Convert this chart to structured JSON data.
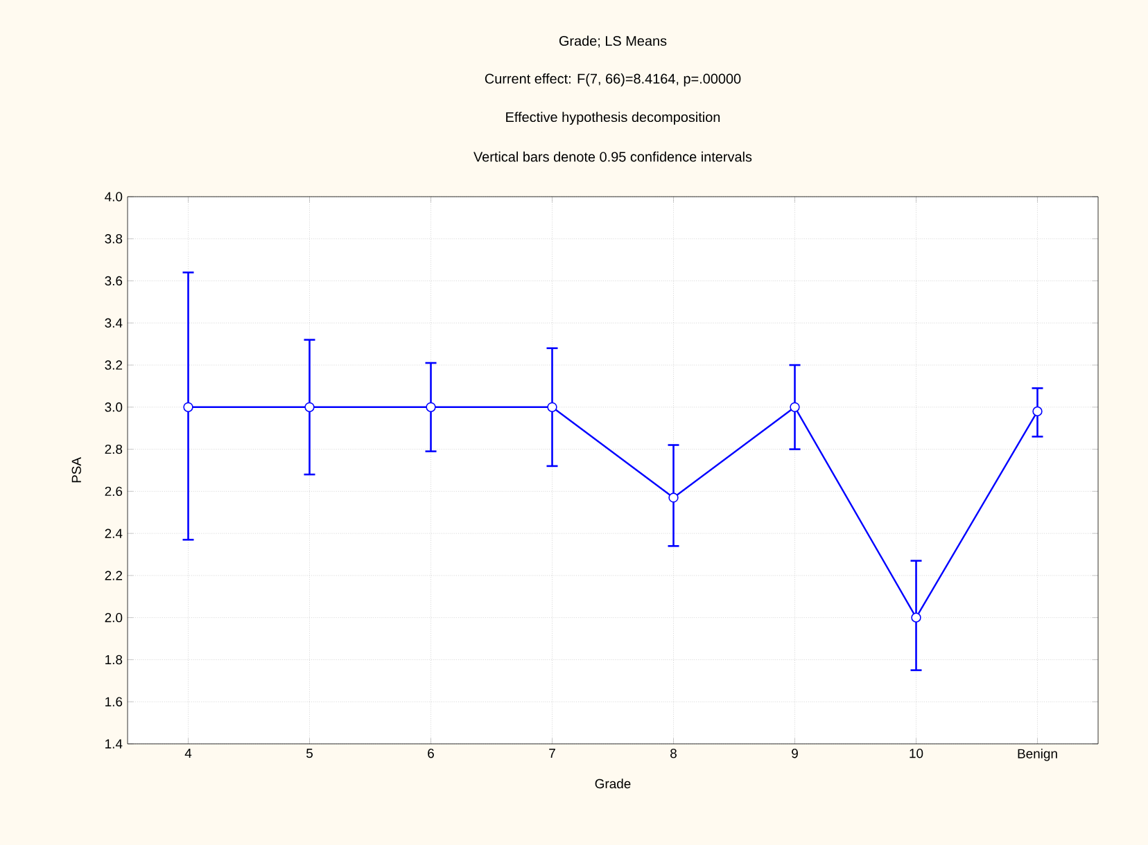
{
  "chart_data": {
    "type": "line",
    "title": "Grade; LS Means",
    "subtitle": "Current effect: F(7, 66)=8.4164, p=.00000",
    "annotations": [
      "Effective hypothesis decomposition",
      "Vertical bars denote 0.95 confidence intervals"
    ],
    "xlabel": "Grade",
    "ylabel": "PSA",
    "categories": [
      "4",
      "5",
      "6",
      "7",
      "8",
      "9",
      "10",
      "Benign"
    ],
    "series": [
      {
        "color": "#0000ff",
        "values": [
          3.0,
          3.0,
          3.0,
          3.0,
          2.57,
          3.0,
          2.0,
          2.98
        ],
        "errors": [
          [
            2.37,
            3.64
          ],
          [
            2.68,
            3.32
          ],
          [
            2.79,
            3.21
          ],
          [
            2.72,
            3.28
          ],
          [
            2.34,
            2.82
          ],
          [
            2.8,
            3.2
          ],
          [
            1.75,
            2.27
          ],
          [
            2.86,
            3.09
          ]
        ]
      }
    ],
    "ylim": [
      1.4,
      4.0
    ],
    "yticks": [
      {
        "value": 1.4,
        "label": "1.4"
      },
      {
        "value": 1.6,
        "label": "1.6"
      },
      {
        "value": 1.8,
        "label": "1.8"
      },
      {
        "value": 2.0,
        "label": "2.0"
      },
      {
        "value": 2.2,
        "label": "2.2"
      },
      {
        "value": 2.4,
        "label": "2.4"
      },
      {
        "value": 2.6,
        "label": "2.6"
      },
      {
        "value": 2.8,
        "label": "2.8"
      },
      {
        "value": 3.0,
        "label": "3.0"
      },
      {
        "value": 3.2,
        "label": "3.2"
      },
      {
        "value": 3.4,
        "label": "3.4"
      },
      {
        "value": 3.6,
        "label": "3.6"
      },
      {
        "value": 3.8,
        "label": "3.8"
      },
      {
        "value": 4.0,
        "label": "4.0"
      }
    ],
    "grid": true,
    "marker": "circle",
    "line_style": "solid"
  }
}
